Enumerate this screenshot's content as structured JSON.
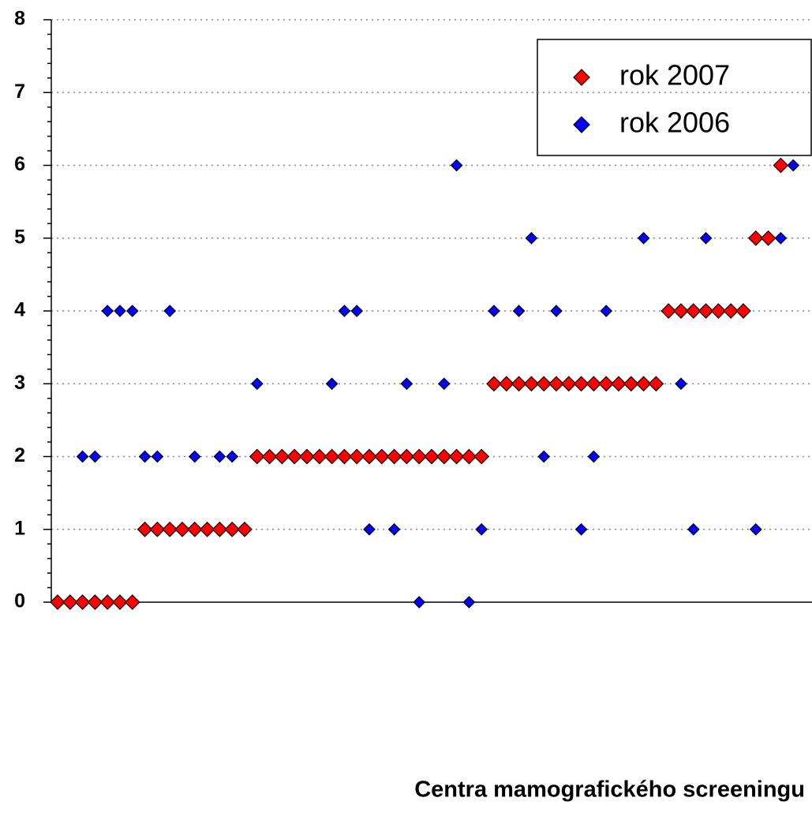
{
  "chart_data": {
    "type": "scatter",
    "x_label": "Centra mamografického screeningu",
    "categories": [
      null,
      null,
      null,
      null,
      null,
      null,
      null,
      null,
      null,
      null,
      null,
      null,
      null,
      null,
      null,
      null,
      null,
      null,
      null,
      null,
      null,
      null,
      null,
      null,
      null,
      null,
      null,
      null,
      null,
      null,
      null,
      null,
      null,
      null,
      null,
      null,
      null,
      null,
      null,
      null,
      null,
      null,
      null,
      null,
      null,
      null,
      null,
      null,
      null,
      null,
      null,
      null,
      null,
      null,
      null,
      null,
      null,
      null,
      null,
      null
    ],
    "series": [
      {
        "name": "rok 2007",
        "color": "#ff0000",
        "values": [
          0,
          0,
          0,
          0,
          0,
          0,
          0,
          1,
          1,
          1,
          1,
          1,
          1,
          1,
          1,
          1,
          2,
          2,
          2,
          2,
          2,
          2,
          2,
          2,
          2,
          2,
          2,
          2,
          2,
          2,
          2,
          2,
          2,
          2,
          2,
          3,
          3,
          3,
          3,
          3,
          3,
          3,
          3,
          3,
          3,
          3,
          3,
          3,
          3,
          4,
          4,
          4,
          4,
          4,
          4,
          4,
          5,
          5,
          6,
          null
        ]
      },
      {
        "name": "rok 2006",
        "color": "#0000ff",
        "values": [
          null,
          null,
          2,
          2,
          4,
          4,
          4,
          2,
          2,
          4,
          null,
          2,
          null,
          2,
          2,
          null,
          3,
          null,
          null,
          null,
          null,
          null,
          3,
          4,
          4,
          1,
          null,
          1,
          3,
          0,
          null,
          3,
          6,
          0,
          1,
          4,
          null,
          4,
          5,
          2,
          4,
          null,
          1,
          2,
          4,
          null,
          null,
          5,
          null,
          null,
          3,
          1,
          5,
          null,
          null,
          null,
          1,
          null,
          5,
          6
        ]
      }
    ],
    "ylim": [
      0,
      8
    ],
    "yticks": [
      0,
      1,
      2,
      3,
      4,
      5,
      6,
      7,
      8
    ],
    "grid": true,
    "legend": "top-right"
  }
}
